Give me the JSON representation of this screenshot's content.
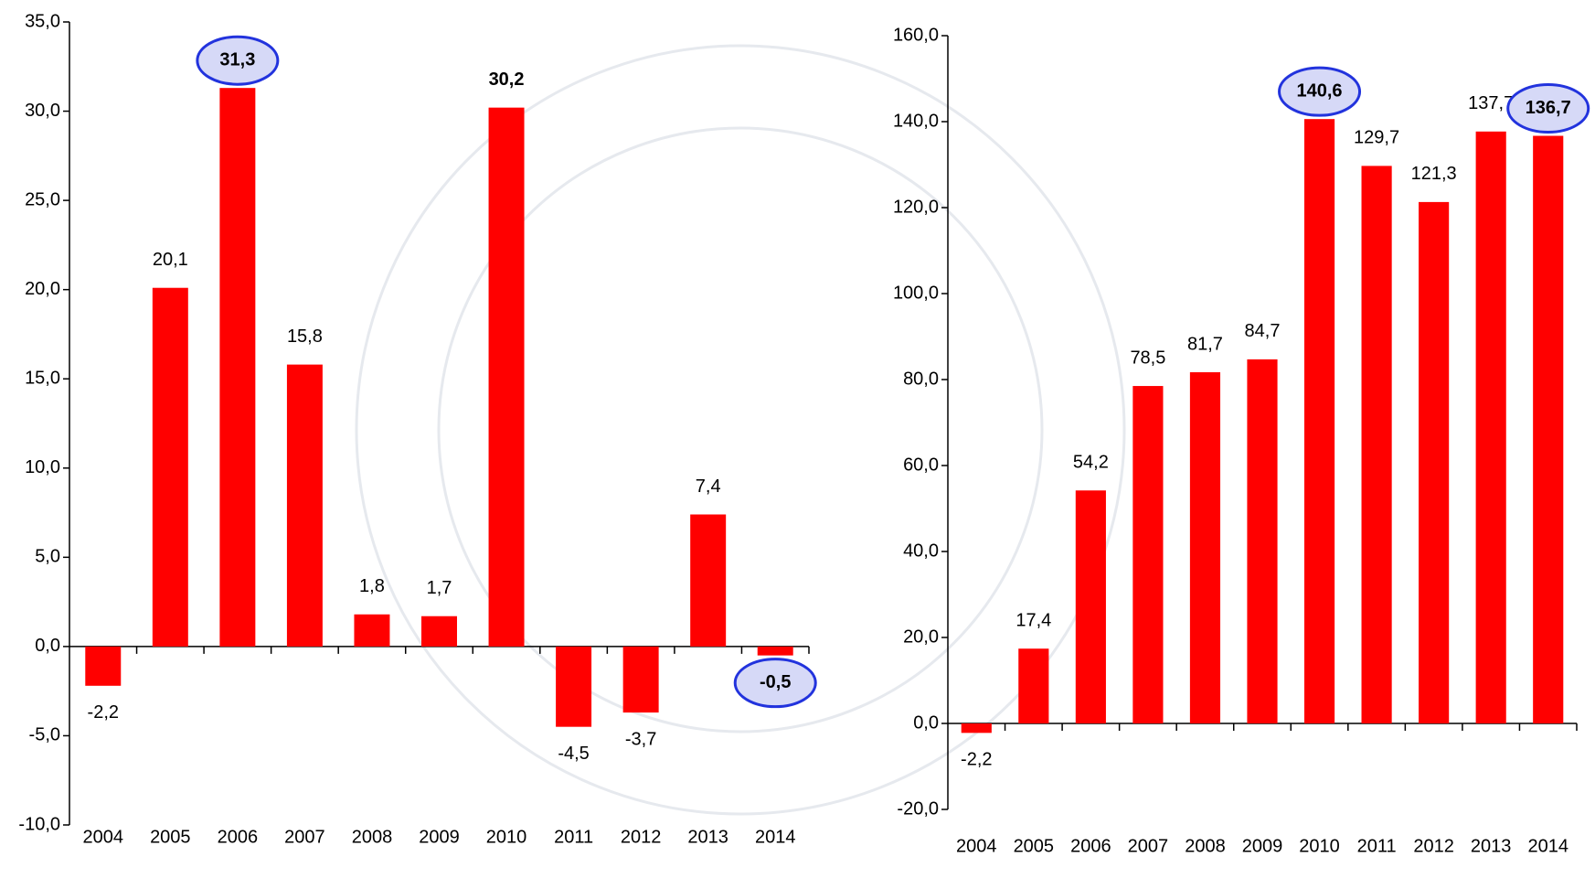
{
  "chart_data": [
    {
      "type": "bar",
      "categories": [
        "2004",
        "2005",
        "2006",
        "2007",
        "2008",
        "2009",
        "2010",
        "2011",
        "2012",
        "2013",
        "2014"
      ],
      "values": [
        -2.2,
        20.1,
        31.3,
        15.8,
        1.8,
        1.7,
        30.2,
        -4.5,
        -3.7,
        7.4,
        -0.5
      ],
      "value_labels": [
        "-2,2",
        "20,1",
        "31,3",
        "15,8",
        "1,8",
        "1,7",
        "30,2",
        "-4,5",
        "-3,7",
        "7,4",
        "-0,5"
      ],
      "color": "#ff0000",
      "ylim": [
        -10,
        35
      ],
      "yticks": [
        {
          "value": -10,
          "label": "-10,0"
        },
        {
          "value": -5,
          "label": "-5,0"
        },
        {
          "value": 0,
          "label": "0,0"
        },
        {
          "value": 5,
          "label": "5,0"
        },
        {
          "value": 10,
          "label": "10,0"
        },
        {
          "value": 15,
          "label": "15,0"
        },
        {
          "value": 20,
          "label": "20,0"
        },
        {
          "value": 25,
          "label": "25,0"
        },
        {
          "value": 30,
          "label": "30,0"
        },
        {
          "value": 35,
          "label": "35,0"
        }
      ],
      "grid": false
    },
    {
      "type": "bar",
      "categories": [
        "2004",
        "2005",
        "2006",
        "2007",
        "2008",
        "2009",
        "2010",
        "2011",
        "2012",
        "2013",
        "2014"
      ],
      "values": [
        -2.2,
        17.4,
        54.2,
        78.5,
        81.7,
        84.7,
        140.6,
        129.7,
        121.3,
        137.7,
        136.7
      ],
      "value_labels": [
        "-2,2",
        "17,4",
        "54,2",
        "78,5",
        "81,7",
        "84,7",
        "140,6",
        "129,7",
        "121,3",
        "137,7",
        "136,7"
      ],
      "color": "#ff0000",
      "ylim": [
        -20,
        160
      ],
      "yticks": [
        {
          "value": -20,
          "label": "-20,0"
        },
        {
          "value": 0,
          "label": "0,0"
        },
        {
          "value": 20,
          "label": "20,0"
        },
        {
          "value": 40,
          "label": "40,0"
        },
        {
          "value": 60,
          "label": "60,0"
        },
        {
          "value": 80,
          "label": "80,0"
        },
        {
          "value": 100,
          "label": "100,0"
        },
        {
          "value": 120,
          "label": "120,0"
        },
        {
          "value": 140,
          "label": "140,0"
        },
        {
          "value": 160,
          "label": "160,0"
        }
      ],
      "grid": false
    }
  ]
}
